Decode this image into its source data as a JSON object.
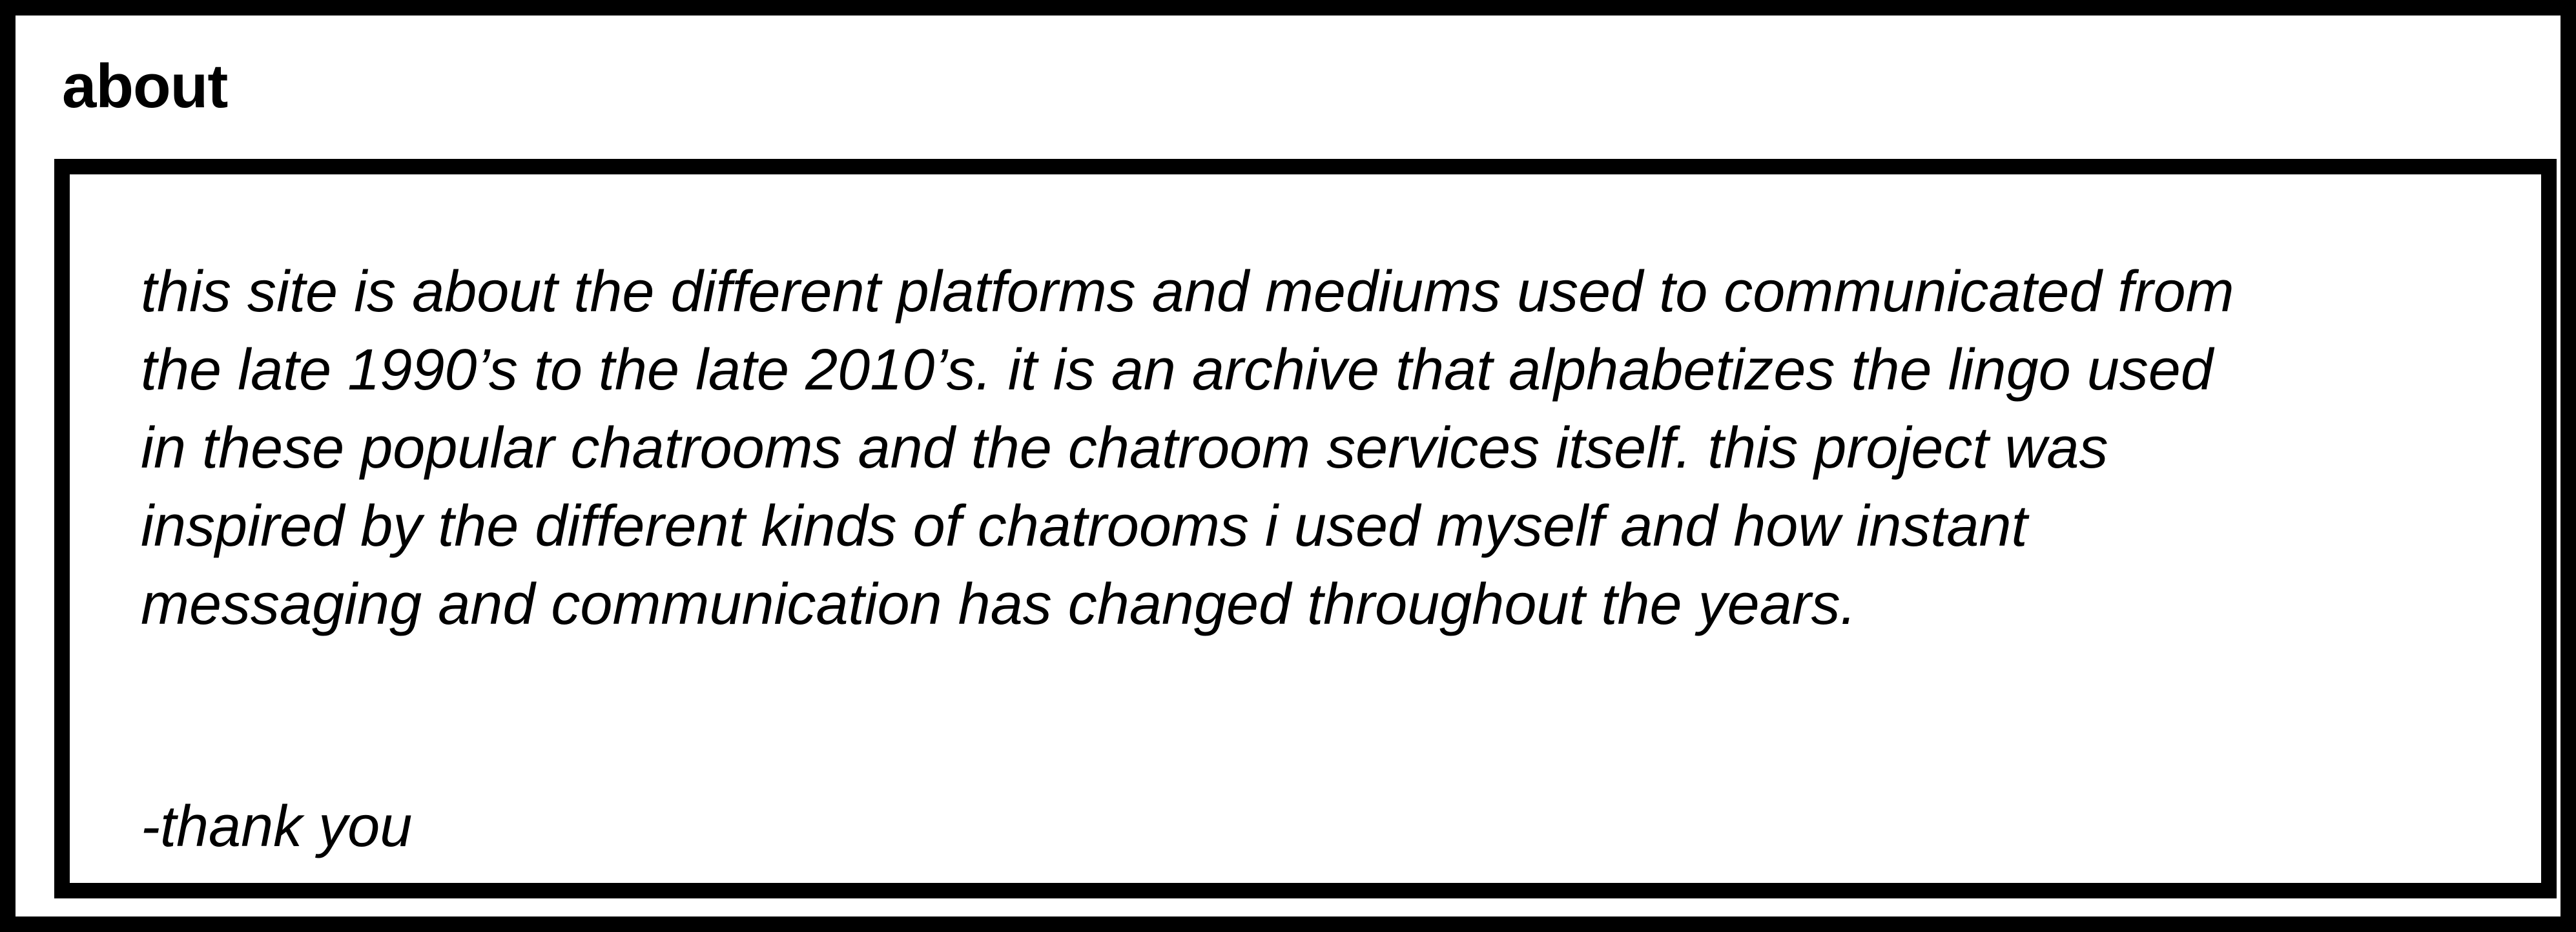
{
  "about": {
    "title": "about",
    "body_lines": [
      "this site is about the different platforms and mediums used to communicated from",
      "the late 1990’s to the late 2010’s. it is an archive that alphabetizes the lingo used",
      "in these popular chatrooms and the chatroom services itself. this project was",
      "inspired by the different kinds of chatrooms i used myself and how instant",
      "messaging and communication has changed throughout the years."
    ],
    "signoff": "-thank you"
  }
}
